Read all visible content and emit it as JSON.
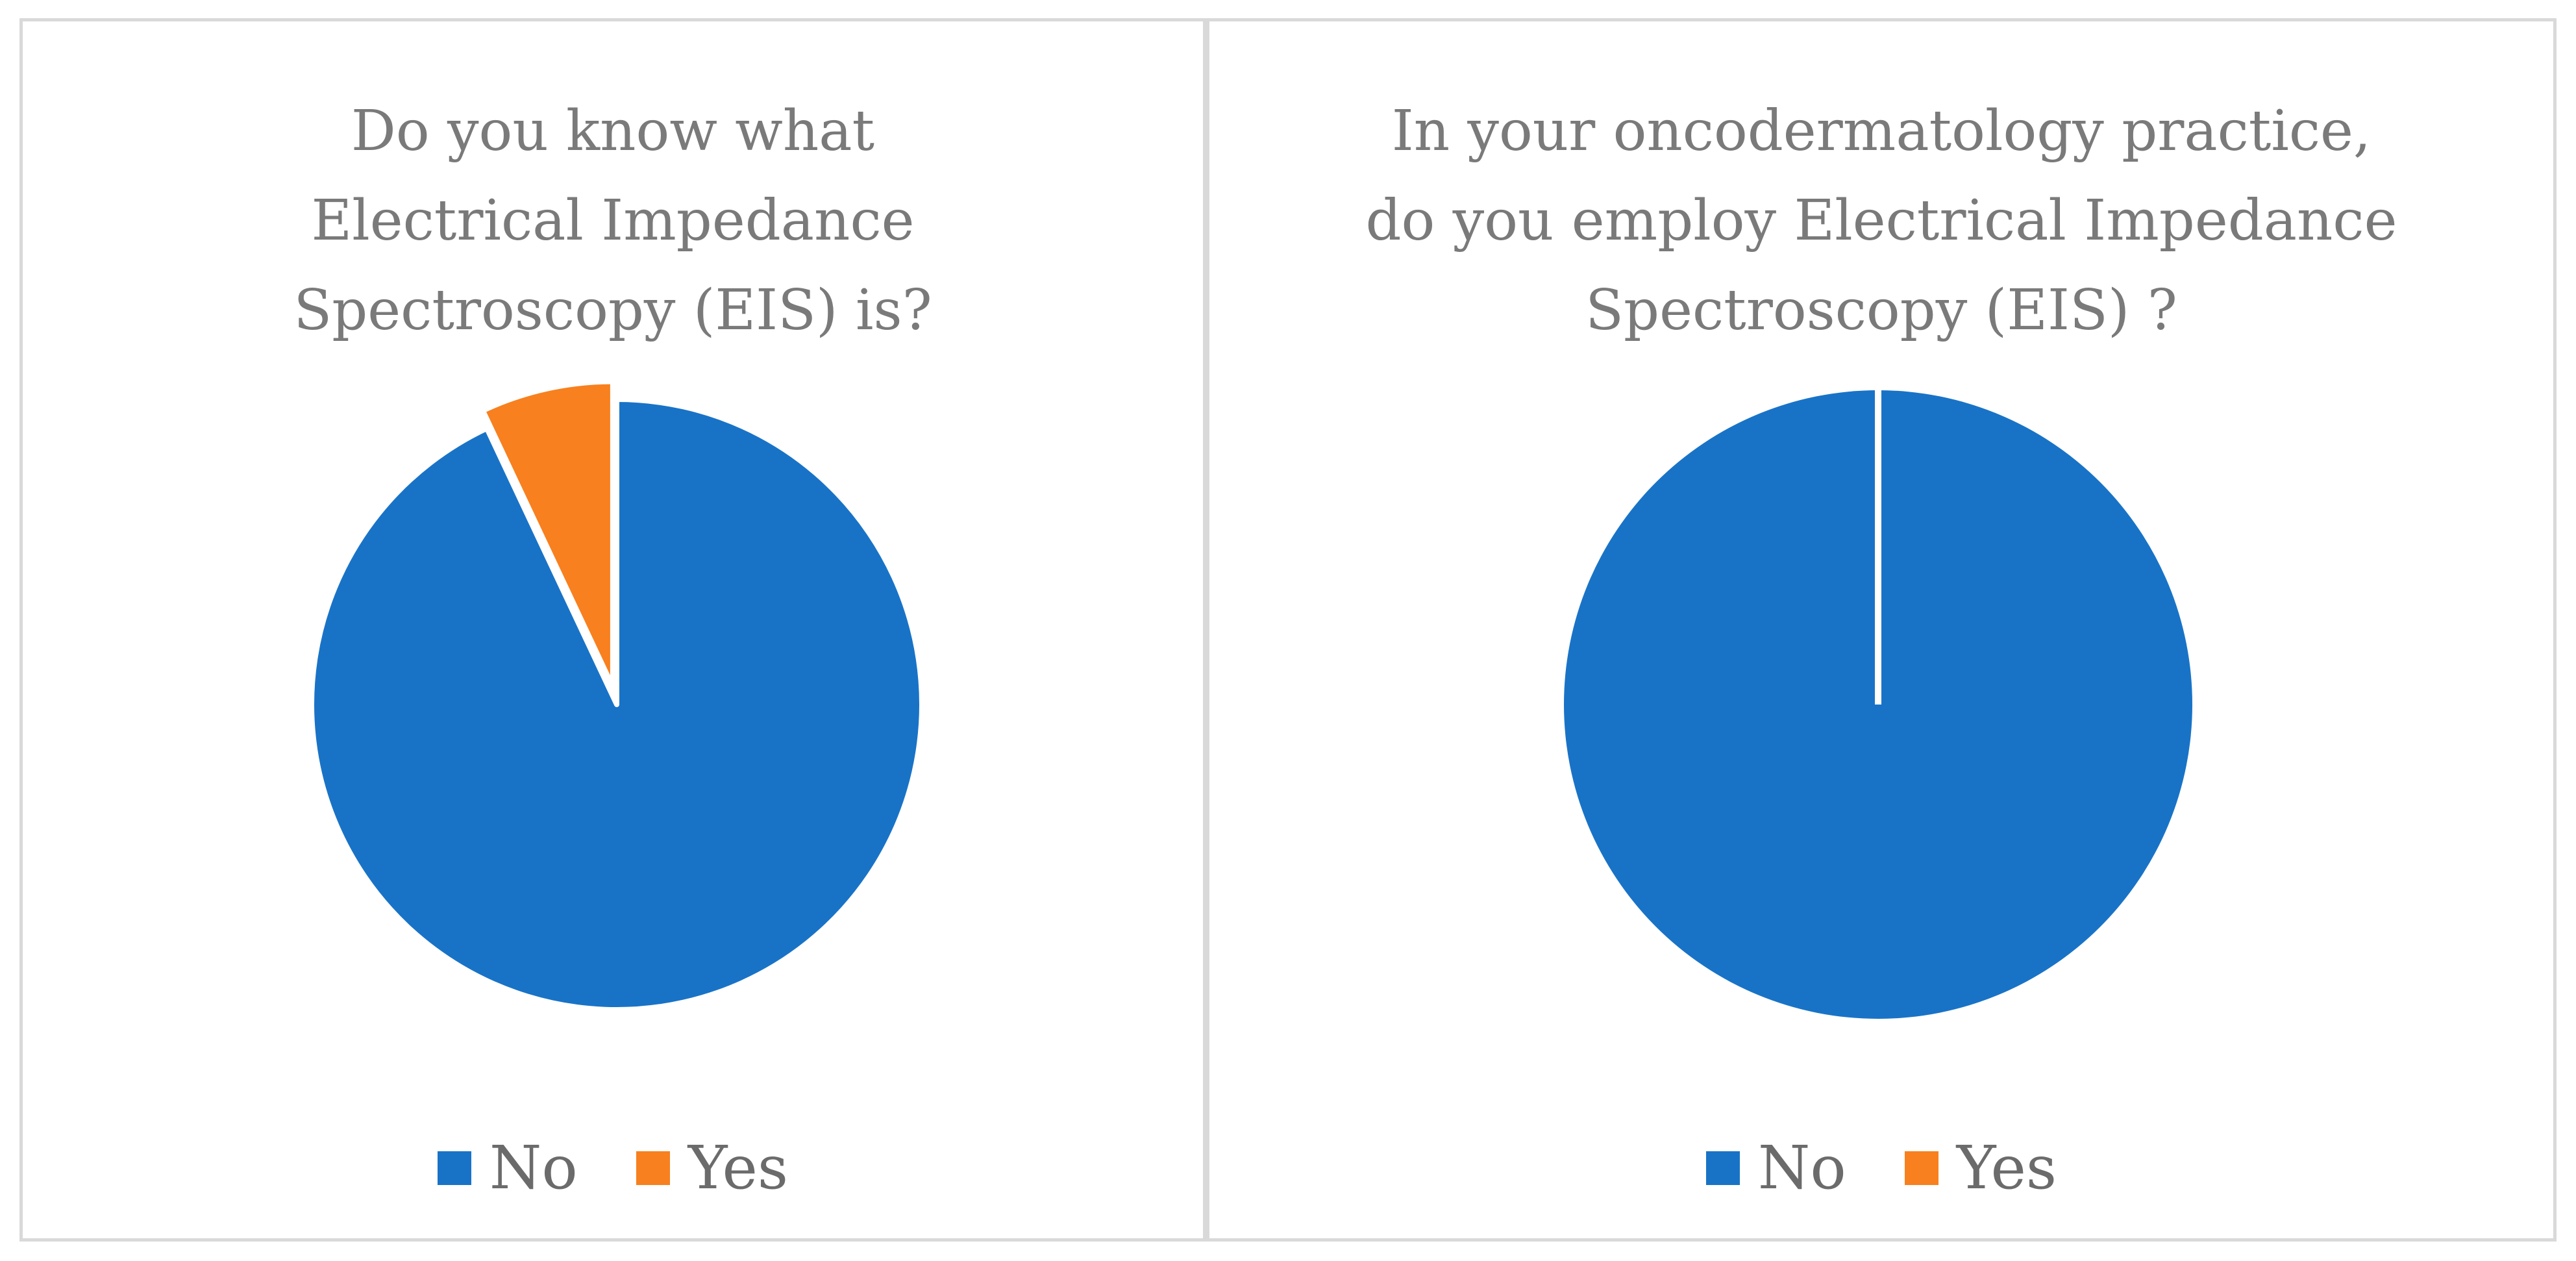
{
  "colors": {
    "no": "#1873c7",
    "yes": "#f8801e"
  },
  "chart_data": [
    {
      "type": "pie",
      "title": "Do you know what\nElectrical Impedance\nSpectroscopy (EIS) is?",
      "categories": [
        "No",
        "Yes"
      ],
      "values": [
        93,
        7
      ],
      "legend_position": "bottom",
      "exploded": "Yes"
    },
    {
      "type": "pie",
      "title": "In your oncodermatology practice,\ndo you employ Electrical Impedance\nSpectroscopy (EIS) ?",
      "categories": [
        "No",
        "Yes"
      ],
      "values": [
        100,
        0
      ],
      "legend_position": "bottom"
    }
  ]
}
